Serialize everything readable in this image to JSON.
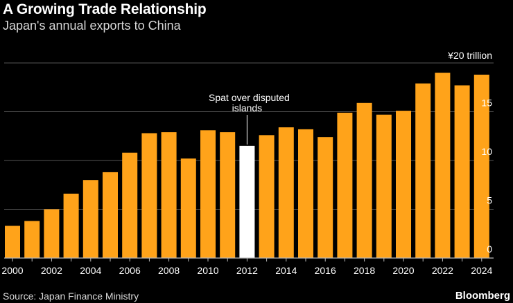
{
  "header": {
    "title": "A Growing Trade Relationship",
    "subtitle": "Japan's annual exports to China"
  },
  "footer": {
    "source": "Source: Japan Finance Ministry",
    "brand": "Bloomberg"
  },
  "colors": {
    "bar": "#ffa31a",
    "highlight": "#ffffff",
    "grid": "#555555",
    "axis": "#bbbbbb",
    "text": "#ffffff"
  },
  "chart_data": {
    "type": "bar",
    "title": "A Growing Trade Relationship",
    "subtitle": "Japan's annual exports to China",
    "unit_label": "¥20 trillion",
    "xlabel": "",
    "ylabel": "¥ trillion",
    "ylim": [
      0,
      20
    ],
    "yticks": [
      0,
      5,
      10,
      15,
      20
    ],
    "ytick_labels": [
      "0",
      "5",
      "10",
      "15",
      "¥20 trillion"
    ],
    "grid": true,
    "categories": [
      "2000",
      "2001",
      "2002",
      "2003",
      "2004",
      "2005",
      "2006",
      "2007",
      "2008",
      "2009",
      "2010",
      "2011",
      "2012",
      "2013",
      "2014",
      "2015",
      "2016",
      "2017",
      "2018",
      "2019",
      "2020",
      "2021",
      "2022",
      "2023",
      "2024"
    ],
    "xtick_labels": [
      "2000",
      "2002",
      "2004",
      "2006",
      "2008",
      "2010",
      "2012",
      "2014",
      "2016",
      "2018",
      "2020",
      "2022",
      "2024"
    ],
    "values": [
      3.3,
      3.8,
      5.0,
      6.6,
      8.0,
      8.8,
      10.8,
      12.8,
      12.9,
      10.2,
      13.1,
      12.9,
      11.5,
      12.6,
      13.4,
      13.2,
      12.4,
      14.9,
      15.9,
      14.7,
      15.1,
      17.9,
      19.0,
      17.7,
      18.8
    ],
    "highlight": "2012",
    "annotation": {
      "text_line1": "Spat over disputed",
      "text_line2": "islands",
      "target": "2012"
    }
  }
}
